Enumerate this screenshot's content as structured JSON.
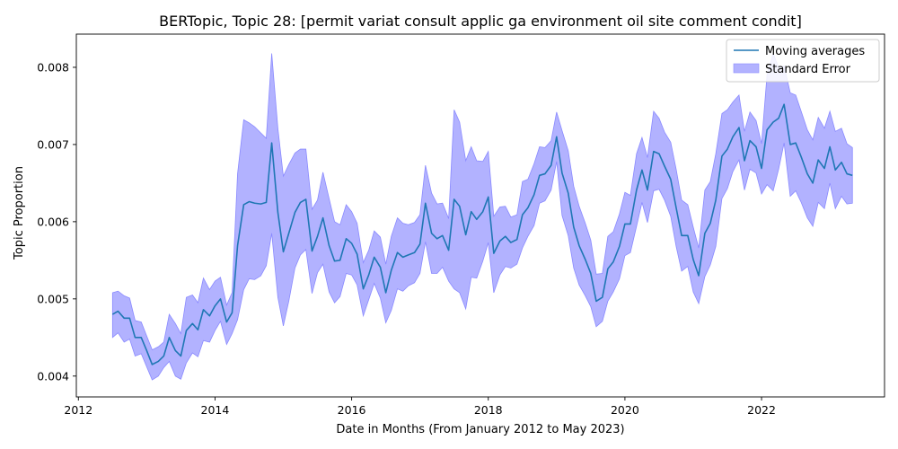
{
  "chart_data": {
    "type": "line",
    "title": "BERTopic, Topic 28: [permit variat consult applic ga environment oil site comment condit]",
    "xlabel": "Date in Months (From January 2012 to May 2023)",
    "ylabel": "Topic Proportion",
    "xlim": [
      2011.97,
      2023.8
    ],
    "ylim": [
      0.00373,
      0.00843
    ],
    "xticks": [
      2012,
      2014,
      2016,
      2018,
      2020,
      2022
    ],
    "yticks": [
      0.004,
      0.005,
      0.006,
      0.007,
      0.008
    ],
    "ytick_labels": [
      "0.004",
      "0.005",
      "0.006",
      "0.007",
      "0.008"
    ],
    "legend_position": "top-right",
    "grid": false,
    "colors": {
      "line": "#1f77b4",
      "band": "#b2b2ff",
      "band_edge": "#8a8aff"
    },
    "series": [
      {
        "name": "Moving averages",
        "x": [
          2012.5,
          2012.58,
          2012.67,
          2012.75,
          2012.83,
          2012.92,
          2013.0,
          2013.08,
          2013.17,
          2013.25,
          2013.33,
          2013.42,
          2013.5,
          2013.58,
          2013.67,
          2013.75,
          2013.83,
          2013.92,
          2014.0,
          2014.08,
          2014.17,
          2014.25,
          2014.33,
          2014.42,
          2014.5,
          2014.58,
          2014.67,
          2014.75,
          2014.83,
          2014.92,
          2015.0,
          2015.08,
          2015.17,
          2015.25,
          2015.33,
          2015.42,
          2015.5,
          2015.58,
          2015.67,
          2015.75,
          2015.83,
          2015.92,
          2016.0,
          2016.08,
          2016.17,
          2016.25,
          2016.33,
          2016.42,
          2016.5,
          2016.58,
          2016.67,
          2016.75,
          2016.83,
          2016.92,
          2017.0,
          2017.08,
          2017.17,
          2017.25,
          2017.33,
          2017.42,
          2017.5,
          2017.58,
          2017.67,
          2017.75,
          2017.83,
          2017.92,
          2018.0,
          2018.08,
          2018.17,
          2018.25,
          2018.33,
          2018.42,
          2018.5,
          2018.58,
          2018.67,
          2018.75,
          2018.83,
          2018.92,
          2019.0,
          2019.08,
          2019.17,
          2019.25,
          2019.33,
          2019.42,
          2019.5,
          2019.58,
          2019.67,
          2019.75,
          2019.83,
          2019.92,
          2020.0,
          2020.08,
          2020.17,
          2020.25,
          2020.33,
          2020.42,
          2020.5,
          2020.58,
          2020.67,
          2020.75,
          2020.83,
          2020.92,
          2021.0,
          2021.08,
          2021.17,
          2021.25,
          2021.33,
          2021.42,
          2021.5,
          2021.58,
          2021.67,
          2021.75,
          2021.83,
          2021.92,
          2022.0,
          2022.08,
          2022.17,
          2022.25,
          2022.33,
          2022.42,
          2022.5,
          2022.58,
          2022.67,
          2022.75,
          2022.83,
          2022.92,
          2023.0,
          2023.08,
          2023.17,
          2023.25,
          2023.33
        ],
        "values": [
          0.0048,
          0.00484,
          0.00475,
          0.00475,
          0.0045,
          0.0045,
          0.00433,
          0.00415,
          0.00419,
          0.00426,
          0.0045,
          0.00433,
          0.00426,
          0.00459,
          0.00468,
          0.0046,
          0.00486,
          0.00478,
          0.00491,
          0.005,
          0.0047,
          0.00482,
          0.00569,
          0.00622,
          0.00626,
          0.00624,
          0.00623,
          0.00625,
          0.00702,
          0.00612,
          0.00561,
          0.00585,
          0.00612,
          0.00625,
          0.00629,
          0.00562,
          0.00581,
          0.00605,
          0.00569,
          0.00549,
          0.0055,
          0.00578,
          0.00572,
          0.00558,
          0.00513,
          0.00531,
          0.00554,
          0.00541,
          0.00508,
          0.00537,
          0.0056,
          0.00554,
          0.00557,
          0.0056,
          0.00571,
          0.00624,
          0.00585,
          0.00578,
          0.00582,
          0.00563,
          0.00629,
          0.0062,
          0.00583,
          0.00613,
          0.00603,
          0.00613,
          0.00632,
          0.00559,
          0.00575,
          0.00581,
          0.00573,
          0.00577,
          0.00609,
          0.00618,
          0.00635,
          0.0066,
          0.00662,
          0.00673,
          0.0071,
          0.00663,
          0.00637,
          0.00593,
          0.00569,
          0.00551,
          0.00533,
          0.00497,
          0.00502,
          0.00539,
          0.00548,
          0.00568,
          0.00597,
          0.00597,
          0.00641,
          0.00667,
          0.00641,
          0.00691,
          0.00688,
          0.00672,
          0.00655,
          0.00618,
          0.00582,
          0.00582,
          0.00551,
          0.0053,
          0.00585,
          0.00598,
          0.00628,
          0.00685,
          0.00694,
          0.0071,
          0.00722,
          0.00679,
          0.00705,
          0.00697,
          0.00669,
          0.00719,
          0.00729,
          0.00734,
          0.00752,
          0.007,
          0.00702,
          0.00684,
          0.00662,
          0.0065,
          0.0068,
          0.00669,
          0.00697,
          0.00667,
          0.00677,
          0.00662,
          0.0066
        ]
      }
    ],
    "band": {
      "name": "Standard Error",
      "upper": [
        0.00508,
        0.0051,
        0.00504,
        0.00501,
        0.00472,
        0.0047,
        0.00452,
        0.00434,
        0.00438,
        0.00444,
        0.0048,
        0.00468,
        0.00455,
        0.00502,
        0.00505,
        0.00495,
        0.00527,
        0.00512,
        0.00523,
        0.00528,
        0.00492,
        0.00508,
        0.00662,
        0.00732,
        0.00728,
        0.00723,
        0.00715,
        0.00708,
        0.00818,
        0.00721,
        0.00659,
        0.00674,
        0.00689,
        0.00694,
        0.00694,
        0.00616,
        0.00628,
        0.00664,
        0.0063,
        0.006,
        0.00596,
        0.00622,
        0.00613,
        0.00598,
        0.00547,
        0.00563,
        0.00588,
        0.0058,
        0.00545,
        0.00581,
        0.00605,
        0.00598,
        0.00596,
        0.00599,
        0.00609,
        0.00673,
        0.00637,
        0.00623,
        0.00624,
        0.00604,
        0.00745,
        0.00729,
        0.00679,
        0.00697,
        0.00679,
        0.00678,
        0.00691,
        0.00607,
        0.00619,
        0.0062,
        0.00606,
        0.00609,
        0.00652,
        0.00655,
        0.00675,
        0.00697,
        0.00696,
        0.00705,
        0.00742,
        0.00718,
        0.00692,
        0.00646,
        0.0062,
        0.00598,
        0.00576,
        0.00532,
        0.00533,
        0.00581,
        0.00587,
        0.0061,
        0.00638,
        0.00634,
        0.00688,
        0.00709,
        0.00683,
        0.00743,
        0.00734,
        0.00716,
        0.00703,
        0.00668,
        0.00628,
        0.00622,
        0.00593,
        0.00566,
        0.00641,
        0.00652,
        0.00688,
        0.0074,
        0.00745,
        0.00755,
        0.00764,
        0.00717,
        0.00742,
        0.00731,
        0.00701,
        0.0079,
        0.00818,
        0.008,
        0.00802,
        0.00767,
        0.00764,
        0.00743,
        0.00719,
        0.00706,
        0.00735,
        0.00721,
        0.00743,
        0.00717,
        0.00721,
        0.00701,
        0.00696
      ],
      "lower": [
        0.0045,
        0.00456,
        0.00444,
        0.00448,
        0.00426,
        0.00429,
        0.00412,
        0.00395,
        0.004,
        0.00411,
        0.00419,
        0.004,
        0.00396,
        0.00417,
        0.0043,
        0.00425,
        0.00446,
        0.00444,
        0.00459,
        0.00471,
        0.00441,
        0.00455,
        0.00473,
        0.00512,
        0.00526,
        0.00525,
        0.0053,
        0.00543,
        0.00585,
        0.00502,
        0.00465,
        0.00497,
        0.0054,
        0.00557,
        0.00564,
        0.00507,
        0.00534,
        0.00545,
        0.00509,
        0.00495,
        0.00503,
        0.00533,
        0.00531,
        0.00518,
        0.00478,
        0.00499,
        0.0052,
        0.00501,
        0.00469,
        0.00485,
        0.00513,
        0.0051,
        0.00517,
        0.00521,
        0.00533,
        0.00574,
        0.00533,
        0.00533,
        0.00541,
        0.00523,
        0.00513,
        0.00508,
        0.00487,
        0.00528,
        0.00527,
        0.00549,
        0.00573,
        0.00508,
        0.00531,
        0.00542,
        0.0054,
        0.00545,
        0.00566,
        0.00581,
        0.00595,
        0.00624,
        0.00627,
        0.00641,
        0.00678,
        0.00608,
        0.00582,
        0.0054,
        0.00518,
        0.00504,
        0.0049,
        0.00464,
        0.00471,
        0.00497,
        0.00509,
        0.00526,
        0.00556,
        0.0056,
        0.00594,
        0.00625,
        0.00599,
        0.0064,
        0.00642,
        0.00628,
        0.00607,
        0.00568,
        0.00536,
        0.00542,
        0.00509,
        0.00494,
        0.00529,
        0.00544,
        0.00568,
        0.0063,
        0.00643,
        0.00665,
        0.0068,
        0.00641,
        0.00668,
        0.00663,
        0.00636,
        0.00648,
        0.0064,
        0.00668,
        0.00702,
        0.00633,
        0.0064,
        0.00625,
        0.00605,
        0.00594,
        0.00625,
        0.00617,
        0.0065,
        0.00617,
        0.00633,
        0.00623,
        0.00624
      ]
    },
    "legend": [
      {
        "label": "Moving averages",
        "kind": "line"
      },
      {
        "label": "Standard Error",
        "kind": "patch"
      }
    ]
  }
}
